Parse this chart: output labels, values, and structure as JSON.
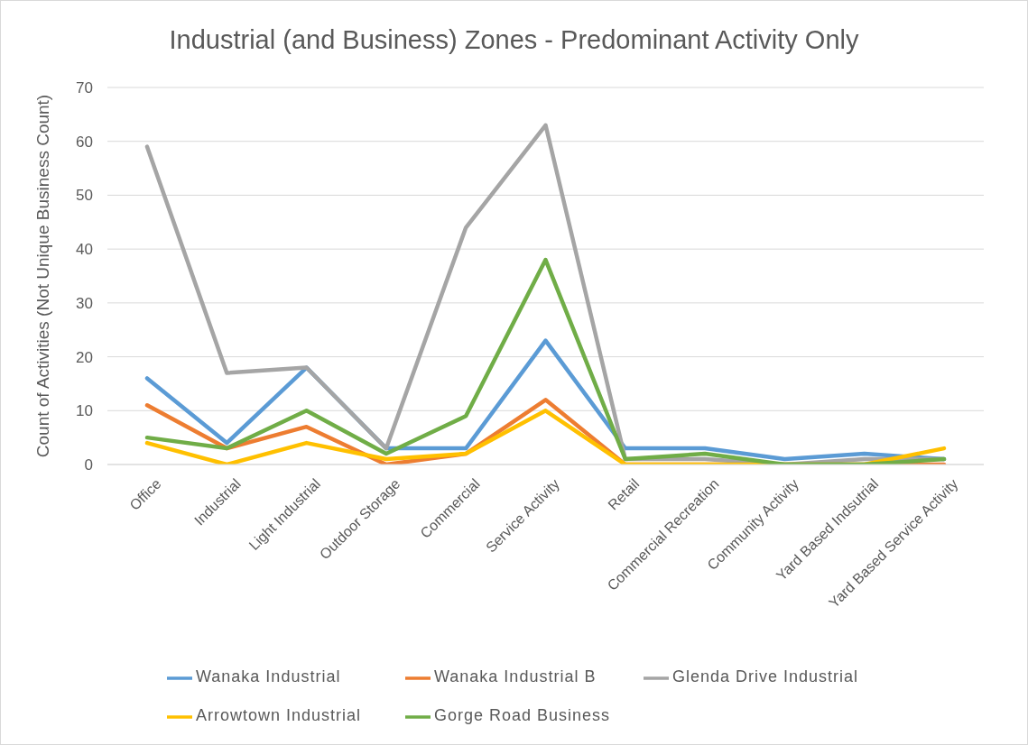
{
  "chart_data": {
    "type": "line",
    "title": "Industrial (and Business) Zones - Predominant Activity Only",
    "ylabel": "Count of Activities (Not Unique Business Count)",
    "categories": [
      "Office",
      "Industrial",
      "Light Industrial",
      "Outdoor Storage",
      "Commercial",
      "Service Activity",
      "Retail",
      "Commercial Recreation",
      "Community Activity",
      "Yard Based Indsutrial",
      "Yard Based Service Activity"
    ],
    "series": [
      {
        "name": "Wanaka Industrial",
        "color": "#5b9bd5",
        "values": [
          16,
          4,
          18,
          3,
          3,
          23,
          3,
          3,
          1,
          2,
          1
        ]
      },
      {
        "name": "Wanaka Industrial B",
        "color": "#ed7d31",
        "values": [
          11,
          3,
          7,
          0,
          2,
          12,
          0,
          0,
          0,
          0,
          0
        ]
      },
      {
        "name": "Glenda Drive Industrial",
        "color": "#a5a5a5",
        "values": [
          59,
          17,
          18,
          3,
          44,
          63,
          1,
          1,
          0,
          1,
          1
        ]
      },
      {
        "name": "Arrowtown Industrial",
        "color": "#ffc000",
        "values": [
          4,
          0,
          4,
          1,
          2,
          10,
          0,
          0,
          0,
          0,
          3
        ]
      },
      {
        "name": "Gorge Road Business",
        "color": "#70ad47",
        "values": [
          5,
          3,
          10,
          2,
          9,
          38,
          1,
          2,
          0,
          0,
          1
        ]
      }
    ],
    "ylim": [
      0,
      70
    ],
    "yticks": [
      0,
      10,
      20,
      30,
      40,
      50,
      60,
      70
    ],
    "grid": "y",
    "legend": "bottom",
    "marker": "none",
    "line_style": "solid"
  }
}
